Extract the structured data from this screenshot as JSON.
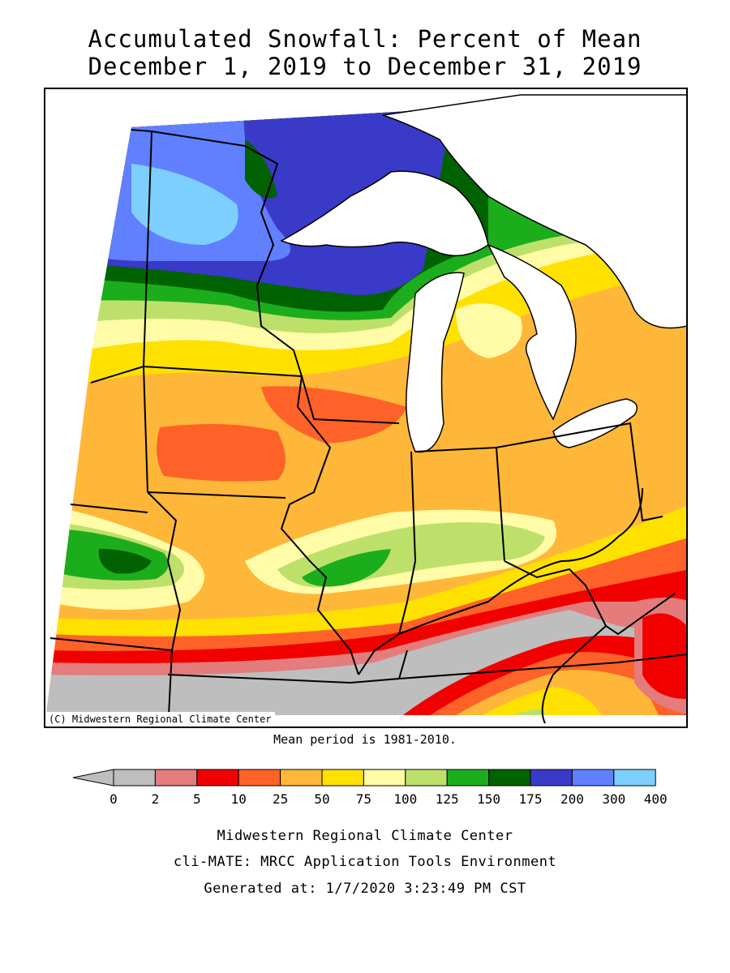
{
  "title": {
    "line1": "Accumulated Snowfall: Percent of Mean",
    "line2": "December 1, 2019 to December 31, 2019"
  },
  "copyright": "(C) Midwestern Regional Climate Center",
  "mean_period": "Mean period is 1981-2010.",
  "legend": {
    "labels": [
      "0",
      "2",
      "5",
      "10",
      "25",
      "50",
      "75",
      "100",
      "125",
      "150",
      "175",
      "200",
      "300",
      "400"
    ],
    "colors": [
      "#bebebe",
      "#e47c7c",
      "#f20000",
      "#ff6228",
      "#ffb739",
      "#ffe100",
      "#fffba6",
      "#bde06a",
      "#1cad1c",
      "#006200",
      "#3a3ac8",
      "#6080ff",
      "#7dcfff"
    ]
  },
  "footer": {
    "line1": "Midwestern Regional Climate Center",
    "line2": "cli-MATE: MRCC Application Tools Environment",
    "line3": "Generated at: 1/7/2020 3:23:49 PM CST"
  }
}
